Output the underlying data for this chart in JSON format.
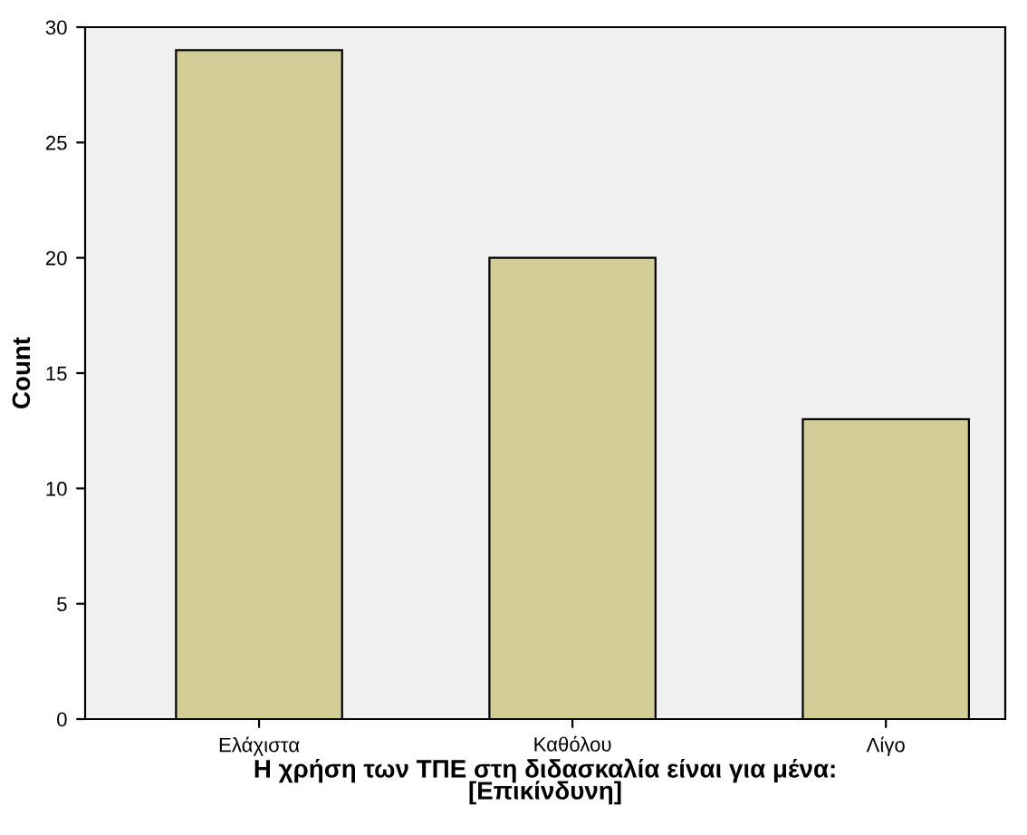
{
  "chart_data": {
    "type": "bar",
    "xlabel": "Η χρήση των ΤΠΕ στη διδασκαλία είναι για μένα:\n[Επικίνδυνη]",
    "ylabel": "Count",
    "categories": [
      "Ελάχιστα",
      "Καθόλου",
      "Λίγο"
    ],
    "values": [
      29,
      20,
      13
    ],
    "color": "#d3ce97",
    "ylim": [
      0,
      30
    ],
    "yticks": [
      0,
      5,
      10,
      15,
      20,
      25,
      30
    ],
    "grid": false
  }
}
